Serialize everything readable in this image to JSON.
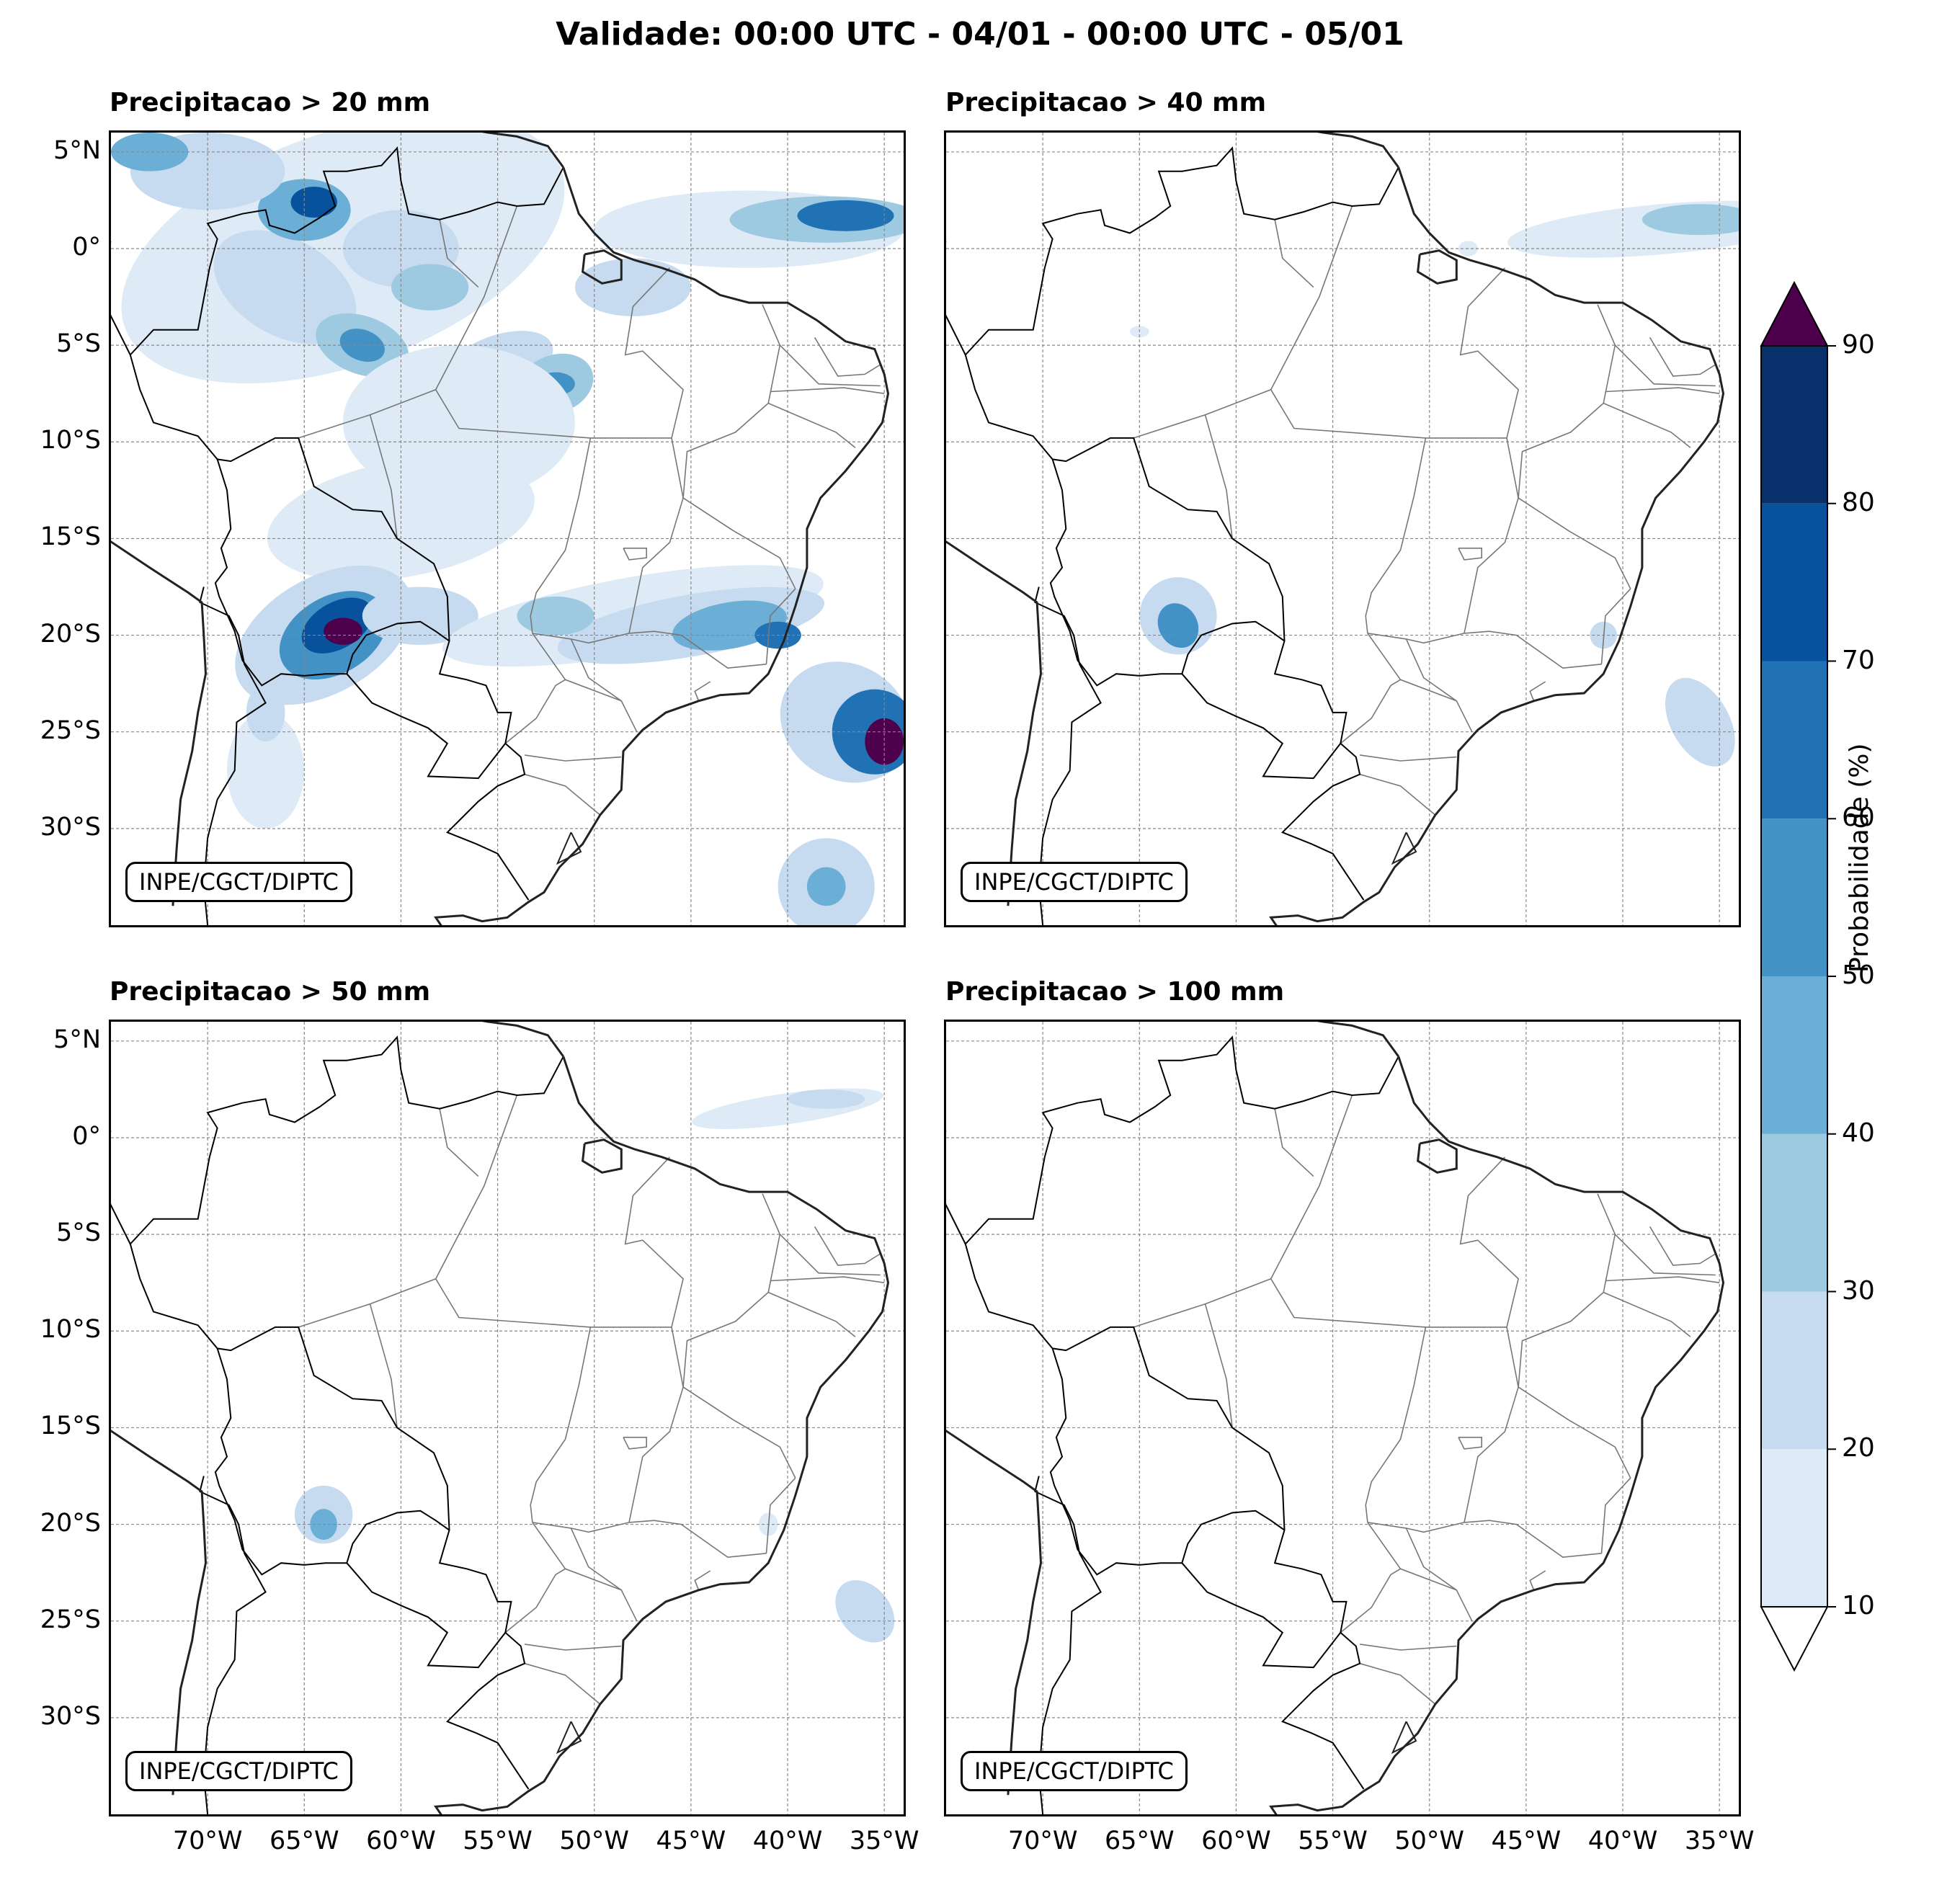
{
  "title": "Validade: 00:00 UTC - 04/01 - 00:00 UTC - 05/01",
  "panels": [
    {
      "title": "Precipitacao > 20 mm",
      "credit": "INPE/CGCT/DIPTC"
    },
    {
      "title": "Precipitacao > 40 mm",
      "credit": "INPE/CGCT/DIPTC"
    },
    {
      "title": "Precipitacao > 50 mm",
      "credit": "INPE/CGCT/DIPTC"
    },
    {
      "title": "Precipitacao > 100 mm",
      "credit": "INPE/CGCT/DIPTC"
    }
  ],
  "lat_ticks": [
    "5°N",
    "0°",
    "5°S",
    "10°S",
    "15°S",
    "20°S",
    "25°S",
    "30°S"
  ],
  "lon_ticks": [
    "70°W",
    "65°W",
    "60°W",
    "55°W",
    "50°W",
    "45°W",
    "40°W",
    "35°W"
  ],
  "map_extent": {
    "lon_min": -75,
    "lon_max": -34,
    "lat_min": -35,
    "lat_max": 6
  },
  "colorbar": {
    "label": "Probabilidade (%)",
    "ticks": [
      "10",
      "20",
      "30",
      "40",
      "50",
      "60",
      "70",
      "80",
      "90"
    ],
    "colors": [
      "#deebf7",
      "#c6dbef",
      "#9ecae1",
      "#6baed6",
      "#4292c6",
      "#2171b5",
      "#08519c",
      "#08306b"
    ],
    "over_color": "#4d004b",
    "under_color": "#ffffff"
  }
}
